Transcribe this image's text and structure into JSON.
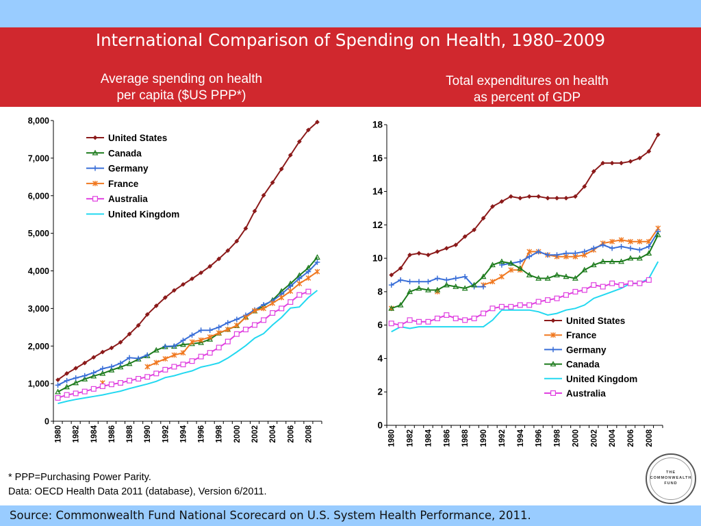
{
  "slide": {
    "title": "International Comparison of Spending on Health, 1980–2009",
    "left_subtitle": [
      "Average spending on health",
      "per capita ($US PPP*)"
    ],
    "right_subtitle": [
      "Total expenditures on health",
      "as percent of GDP"
    ],
    "footnote": "* PPP=Purchasing Power Parity.",
    "data_note": "Data: OECD Health Data 2011 (database), Version 6/2011.",
    "source": "Source: Commonwealth Fund National Scorecard on U.S. System Health Performance, 2011.",
    "logo": [
      "THE",
      "COMMONWEALTH",
      "FUND"
    ]
  },
  "colors": {
    "title_band": "#d0282e",
    "light_band": "#99ccff"
  },
  "chart_data": [
    {
      "type": "line",
      "title": "Average spending on health per capita ($US PPP*)",
      "x": [
        1980,
        1981,
        1982,
        1983,
        1984,
        1985,
        1986,
        1987,
        1988,
        1989,
        1990,
        1991,
        1992,
        1993,
        1994,
        1995,
        1996,
        1997,
        1998,
        1999,
        2000,
        2001,
        2002,
        2003,
        2004,
        2005,
        2006,
        2007,
        2008,
        2009
      ],
      "x_tick_labels": [
        "1980",
        "1982",
        "1984",
        "1986",
        "1988",
        "1990",
        "1992",
        "1994",
        "1996",
        "1998",
        "2000",
        "2002",
        "2004",
        "2006",
        "2008"
      ],
      "y_tick_labels": [
        "0",
        "1,000",
        "2,000",
        "3,000",
        "4,000",
        "5,000",
        "6,000",
        "7,000",
        "8,000"
      ],
      "ylim": [
        0,
        8000
      ],
      "legend_position": "top-left",
      "series": [
        {
          "name": "United States",
          "color": "#8b1a1a",
          "marker": "diamond",
          "values": [
            1100,
            1270,
            1410,
            1550,
            1700,
            1840,
            1950,
            2100,
            2320,
            2550,
            2840,
            3070,
            3290,
            3480,
            3640,
            3790,
            3950,
            4120,
            4320,
            4540,
            4790,
            5130,
            5590,
            6010,
            6350,
            6710,
            7080,
            7440,
            7750,
            7960
          ]
        },
        {
          "name": "Canada",
          "color": "#1b7a1b",
          "marker": "triangle",
          "values": [
            780,
            910,
            1020,
            1120,
            1200,
            1270,
            1360,
            1440,
            1530,
            1650,
            1740,
            1890,
            1980,
            1990,
            2040,
            2060,
            2090,
            2180,
            2340,
            2440,
            2540,
            2770,
            2930,
            3070,
            3220,
            3460,
            3660,
            3880,
            4080,
            4360
          ]
        },
        {
          "name": "Germany",
          "color": "#3a6fd8",
          "marker": "plus",
          "values": [
            960,
            1080,
            1150,
            1210,
            1290,
            1400,
            1450,
            1540,
            1690,
            1670,
            1760,
            null,
            1990,
            2000,
            2150,
            2290,
            2420,
            2420,
            2500,
            2620,
            2710,
            2820,
            2960,
            3100,
            3200,
            3380,
            3590,
            3800,
            3980,
            4230
          ]
        },
        {
          "name": "France",
          "color": "#f07820",
          "marker": "star",
          "values": [
            null,
            null,
            null,
            null,
            null,
            1020,
            null,
            null,
            null,
            null,
            1450,
            1560,
            1660,
            1760,
            1820,
            2110,
            2160,
            2240,
            2350,
            2440,
            2550,
            2760,
            2940,
            3000,
            3140,
            3290,
            3460,
            3660,
            3810,
            3980
          ]
        },
        {
          "name": "Australia",
          "color": "#e040e0",
          "marker": "square",
          "values": [
            620,
            700,
            740,
            790,
            860,
            930,
            980,
            1020,
            1080,
            1130,
            1180,
            1270,
            1370,
            1450,
            1510,
            1600,
            1720,
            1820,
            1960,
            2120,
            2320,
            2440,
            2560,
            2690,
            2880,
            3000,
            3170,
            3360,
            3450,
            null
          ]
        },
        {
          "name": "United Kingdom",
          "color": "#22d8f0",
          "marker": "none",
          "values": [
            470,
            530,
            580,
            620,
            660,
            700,
            750,
            800,
            870,
            930,
            990,
            1060,
            1160,
            1210,
            1280,
            1340,
            1440,
            1490,
            1550,
            1680,
            1840,
            2010,
            2210,
            2330,
            2560,
            2760,
            3010,
            3040,
            3290,
            3480
          ]
        }
      ]
    },
    {
      "type": "line",
      "title": "Total expenditures on health as percent of GDP",
      "x": [
        1980,
        1981,
        1982,
        1983,
        1984,
        1985,
        1986,
        1987,
        1988,
        1989,
        1990,
        1991,
        1992,
        1993,
        1994,
        1995,
        1996,
        1997,
        1998,
        1999,
        2000,
        2001,
        2002,
        2003,
        2004,
        2005,
        2006,
        2007,
        2008,
        2009
      ],
      "x_tick_labels": [
        "1980",
        "1982",
        "1984",
        "1986",
        "1988",
        "1990",
        "1992",
        "1994",
        "1996",
        "1998",
        "2000",
        "2002",
        "2004",
        "2006",
        "2008"
      ],
      "y_tick_labels": [
        "0",
        "2",
        "4",
        "6",
        "8",
        "10",
        "12",
        "14",
        "16",
        "18"
      ],
      "ylim": [
        0,
        18
      ],
      "legend_position": "bottom-right",
      "series": [
        {
          "name": "United States",
          "color": "#8b1a1a",
          "marker": "diamond",
          "values": [
            9.0,
            9.4,
            10.2,
            10.3,
            10.2,
            10.4,
            10.6,
            10.8,
            11.3,
            11.7,
            12.4,
            13.1,
            13.4,
            13.7,
            13.6,
            13.7,
            13.7,
            13.6,
            13.6,
            13.6,
            13.7,
            14.3,
            15.2,
            15.7,
            15.7,
            15.7,
            15.8,
            16.0,
            16.4,
            17.4
          ]
        },
        {
          "name": "France",
          "color": "#f07820",
          "marker": "star",
          "values": [
            7.0,
            null,
            null,
            null,
            null,
            8.0,
            null,
            null,
            null,
            null,
            8.4,
            8.6,
            8.9,
            9.3,
            9.3,
            10.4,
            10.4,
            10.2,
            10.1,
            10.1,
            10.1,
            10.2,
            10.5,
            10.9,
            11.0,
            11.1,
            11.0,
            11.0,
            11.0,
            11.8
          ]
        },
        {
          "name": "Germany",
          "color": "#3a6fd8",
          "marker": "plus",
          "values": [
            8.4,
            8.7,
            8.6,
            8.6,
            8.6,
            8.8,
            8.7,
            8.8,
            8.9,
            8.3,
            8.3,
            null,
            9.6,
            9.7,
            9.8,
            10.1,
            10.4,
            10.2,
            10.2,
            10.3,
            10.3,
            10.4,
            10.6,
            10.8,
            10.6,
            10.7,
            10.6,
            10.5,
            10.7,
            11.6
          ]
        },
        {
          "name": "Canada",
          "color": "#1b7a1b",
          "marker": "triangle",
          "values": [
            7.0,
            7.2,
            8.0,
            8.2,
            8.1,
            8.1,
            8.4,
            8.3,
            8.2,
            8.4,
            8.9,
            9.6,
            9.8,
            9.7,
            9.4,
            9.0,
            8.8,
            8.8,
            9.0,
            8.9,
            8.8,
            9.3,
            9.6,
            9.8,
            9.8,
            9.8,
            10.0,
            10.0,
            10.3,
            11.4
          ]
        },
        {
          "name": "United Kingdom",
          "color": "#22d8f0",
          "marker": "none",
          "values": [
            5.6,
            5.9,
            5.8,
            5.9,
            5.9,
            5.9,
            5.9,
            5.9,
            5.9,
            5.9,
            5.9,
            6.3,
            6.9,
            6.9,
            6.9,
            6.9,
            6.8,
            6.6,
            6.7,
            6.9,
            7.0,
            7.2,
            7.6,
            7.8,
            8.0,
            8.2,
            8.5,
            8.5,
            8.8,
            9.8
          ]
        },
        {
          "name": "Australia",
          "color": "#e040e0",
          "marker": "square",
          "values": [
            6.1,
            6.0,
            6.3,
            6.2,
            6.2,
            6.4,
            6.6,
            6.4,
            6.3,
            6.4,
            6.7,
            7.0,
            7.1,
            7.1,
            7.2,
            7.2,
            7.4,
            7.5,
            7.6,
            7.8,
            8.0,
            8.1,
            8.4,
            8.3,
            8.5,
            8.4,
            8.5,
            8.5,
            8.7,
            null
          ]
        }
      ]
    }
  ]
}
